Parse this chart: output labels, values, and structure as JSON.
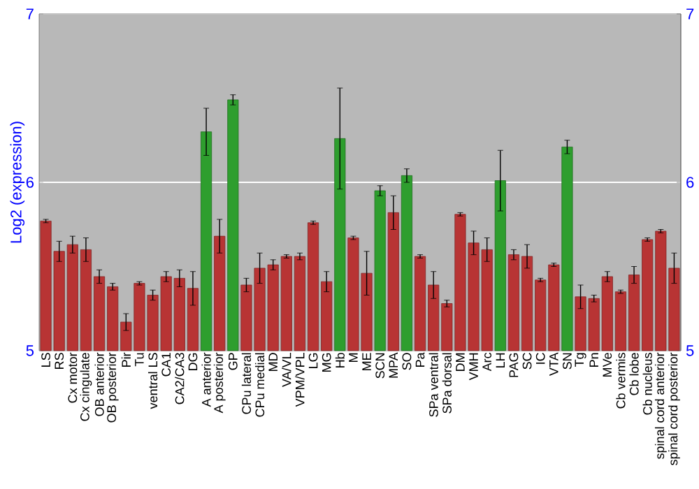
{
  "chart_data": {
    "type": "bar",
    "ylabel": "Log2 (expression)",
    "categories": [
      "LS",
      "RS",
      "Cx motor",
      "Cx cingulate",
      "OB anterior",
      "OB posterior",
      "Pir",
      "Tu",
      "ventral LS",
      "CA1",
      "CA2/CA3",
      "DG",
      "A anterior",
      "A posterior",
      "GP",
      "CPu lateral",
      "CPu medial",
      "MD",
      "VA/VL",
      "VPM/VPL",
      "LG",
      "MG",
      "Hb",
      "M",
      "ME",
      "SCN",
      "MPA",
      "SO",
      "Pa",
      "SPa ventral",
      "SPa dorsal",
      "DM",
      "VMH",
      "Arc",
      "LH",
      "PAG",
      "SC",
      "IC",
      "VTA",
      "SN",
      "Tg",
      "Pn",
      "MVe",
      "Cb vermis",
      "Cb lobe",
      "Cb nucleus",
      "spinal cord anterior",
      "spinal cord posterior"
    ],
    "values": [
      5.77,
      5.59,
      5.63,
      5.6,
      5.44,
      5.38,
      5.17,
      5.4,
      5.33,
      5.44,
      5.43,
      5.37,
      6.3,
      5.68,
      6.49,
      5.39,
      5.49,
      5.51,
      5.56,
      5.56,
      5.76,
      5.41,
      6.26,
      5.67,
      5.46,
      5.95,
      5.82,
      6.04,
      5.56,
      5.39,
      5.28,
      5.81,
      5.64,
      5.6,
      6.01,
      5.57,
      5.56,
      5.42,
      5.51,
      6.21,
      5.32,
      5.31,
      5.44,
      5.35,
      5.45,
      5.66,
      5.71,
      5.49
    ],
    "errors": [
      0.01,
      0.06,
      0.05,
      0.07,
      0.04,
      0.02,
      0.05,
      0.01,
      0.03,
      0.03,
      0.05,
      0.1,
      0.14,
      0.1,
      0.03,
      0.04,
      0.09,
      0.03,
      0.01,
      0.02,
      0.01,
      0.06,
      0.3,
      0.01,
      0.13,
      0.03,
      0.1,
      0.04,
      0.01,
      0.08,
      0.02,
      0.01,
      0.07,
      0.07,
      0.18,
      0.03,
      0.07,
      0.01,
      0.01,
      0.04,
      0.07,
      0.02,
      0.03,
      0.01,
      0.05,
      0.01,
      0.01,
      0.09
    ],
    "colors": [
      "#b83434",
      "#b83434",
      "#b83434",
      "#b83434",
      "#b83434",
      "#b83434",
      "#b83434",
      "#b83434",
      "#b83434",
      "#b83434",
      "#b83434",
      "#b83434",
      "#2e9e2e",
      "#b83434",
      "#2e9e2e",
      "#b83434",
      "#b83434",
      "#b83434",
      "#b83434",
      "#b83434",
      "#b83434",
      "#b83434",
      "#2e9e2e",
      "#b83434",
      "#b83434",
      "#2e9e2e",
      "#b83434",
      "#2e9e2e",
      "#b83434",
      "#b83434",
      "#b83434",
      "#b83434",
      "#b83434",
      "#b83434",
      "#2e9e2e",
      "#b83434",
      "#b83434",
      "#b83434",
      "#b83434",
      "#2e9e2e",
      "#b83434",
      "#b83434",
      "#b83434",
      "#b83434",
      "#b83434",
      "#b83434",
      "#b83434",
      "#b83434"
    ],
    "ylim": [
      5,
      7
    ],
    "yticks": [
      5,
      6,
      7
    ],
    "y2lim": [
      5,
      7
    ],
    "y2ticks": [
      5,
      6,
      7
    ],
    "grid": "y"
  }
}
